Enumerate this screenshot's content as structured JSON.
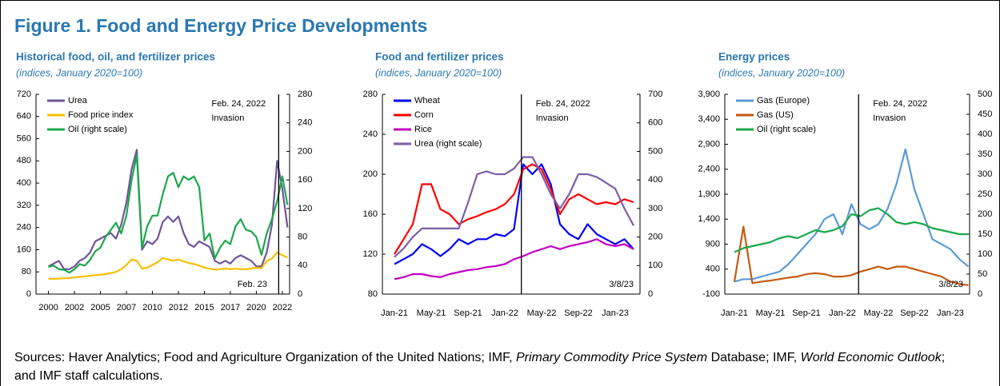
{
  "title": "Figure 1. Food and Energy Price Developments",
  "sources": [
    "Sources: Haver Analytics; Food and Agriculture Organization of the United Nations; IMF, ",
    "Primary Commodity Price System",
    " Database; IMF, ",
    "World Economic Outlook",
    "; and IMF staff calculations."
  ],
  "chart_data": [
    {
      "type": "line",
      "title": "Historical food, oil, and fertilizer prices",
      "subtitle": "(indices, January 2020=100)",
      "x": [
        2000,
        2000.5,
        2001,
        2001.5,
        2002,
        2002.5,
        2003,
        2003.5,
        2004,
        2004.5,
        2005,
        2005.5,
        2006,
        2006.5,
        2007,
        2007.5,
        2008,
        2008.5,
        2009,
        2009.5,
        2010,
        2010.5,
        2011,
        2011.5,
        2012,
        2012.5,
        2013,
        2013.5,
        2014,
        2014.5,
        2015,
        2015.5,
        2016,
        2016.5,
        2017,
        2017.5,
        2018,
        2018.5,
        2019,
        2019.5,
        2020,
        2020.5,
        2021,
        2021.5,
        2022,
        2022.5,
        2023
      ],
      "xlim": [
        1998.8,
        2023.2
      ],
      "xticks": [
        2000,
        {
          "value": 2002.5,
          "label": "2002"
        },
        2005,
        {
          "value": 2007.5,
          "label": "2007"
        },
        2010,
        {
          "value": 2012.5,
          "label": "2012"
        },
        2015,
        {
          "value": 2017.5,
          "label": "2017"
        },
        2020,
        {
          "value": 2022.5,
          "label": "2022"
        }
      ],
      "ylim": [
        0,
        720
      ],
      "yticks": [
        0,
        80,
        160,
        240,
        320,
        400,
        480,
        560,
        640,
        720
      ],
      "y2lim": [
        0,
        280
      ],
      "y2ticks": [
        0,
        40,
        80,
        120,
        160,
        200,
        240,
        280
      ],
      "grid": false,
      "legend": "upper left",
      "series": [
        {
          "name": "Urea",
          "color": "#6f5499",
          "values": [
            100,
            110,
            120,
            90,
            90,
            100,
            120,
            130,
            150,
            190,
            200,
            210,
            220,
            200,
            250,
            330,
            450,
            520,
            160,
            190,
            180,
            200,
            260,
            280,
            260,
            280,
            220,
            180,
            170,
            190,
            180,
            170,
            120,
            110,
            120,
            110,
            130,
            140,
            130,
            120,
            100,
            100,
            150,
            250,
            480,
            380,
            240
          ]
        },
        {
          "name": "Food price index",
          "color": "#f5c000",
          "values": [
            55,
            55,
            56,
            57,
            58,
            60,
            62,
            64,
            66,
            68,
            70,
            72,
            76,
            80,
            90,
            105,
            125,
            120,
            92,
            95,
            105,
            115,
            130,
            125,
            120,
            125,
            118,
            112,
            108,
            103,
            95,
            92,
            88,
            90,
            92,
            90,
            92,
            90,
            90,
            92,
            95,
            93,
            120,
            128,
            150,
            140,
            132
          ]
        },
        {
          "name": "Oil (right scale)",
          "color": "#1aa84a",
          "axis": "y2",
          "values": [
            38,
            40,
            35,
            34,
            30,
            35,
            42,
            40,
            48,
            60,
            65,
            80,
            90,
            100,
            85,
            110,
            160,
            195,
            65,
            95,
            110,
            110,
            140,
            165,
            170,
            150,
            165,
            160,
            165,
            150,
            75,
            85,
            50,
            65,
            75,
            70,
            95,
            105,
            90,
            88,
            80,
            55,
            85,
            105,
            130,
            165,
            125
          ]
        }
      ],
      "event": {
        "x": 2022.15,
        "labels": [
          "Feb. 24, 2022",
          "Invasion"
        ]
      },
      "note": "Feb. 23"
    },
    {
      "type": "line",
      "title": "Food and fertilizer prices",
      "subtitle": "(indices, January 2020=100)",
      "categories": [
        "Jan-21",
        null,
        null,
        null,
        "May-21",
        null,
        null,
        null,
        "Sep-21",
        null,
        null,
        null,
        "Jan-22",
        null,
        null,
        null,
        "May-22",
        null,
        null,
        null,
        "Sep-22",
        null,
        null,
        null,
        "Jan-23",
        null,
        null
      ],
      "ylim": [
        80,
        280
      ],
      "yticks": [
        80,
        120,
        160,
        200,
        240,
        280
      ],
      "y2lim": [
        0,
        700
      ],
      "y2ticks": [
        0,
        100,
        200,
        300,
        400,
        500,
        600,
        700
      ],
      "grid": false,
      "legend": "upper left",
      "series": [
        {
          "name": "Wheat",
          "color": "#0000ff",
          "values": [
            110,
            115,
            120,
            130,
            125,
            118,
            125,
            135,
            130,
            135,
            135,
            140,
            138,
            145,
            210,
            200,
            210,
            190,
            150,
            140,
            135,
            150,
            140,
            135,
            130,
            135,
            125
          ]
        },
        {
          "name": "Corn",
          "color": "#ff0000",
          "values": [
            120,
            135,
            150,
            190,
            190,
            165,
            160,
            150,
            155,
            158,
            162,
            165,
            170,
            180,
            205,
            210,
            205,
            185,
            160,
            175,
            180,
            175,
            170,
            172,
            170,
            175,
            172
          ]
        },
        {
          "name": "Rice",
          "color": "#c000c0",
          "values": [
            95,
            97,
            100,
            100,
            98,
            97,
            100,
            102,
            104,
            105,
            107,
            108,
            110,
            115,
            118,
            122,
            125,
            128,
            125,
            128,
            130,
            132,
            135,
            130,
            128,
            130,
            125
          ]
        },
        {
          "name": "Urea (right scale)",
          "color": "#7b5ea7",
          "axis": "y2",
          "values": [
            130,
            160,
            200,
            230,
            230,
            230,
            230,
            230,
            320,
            420,
            430,
            420,
            420,
            440,
            480,
            480,
            420,
            350,
            300,
            350,
            420,
            420,
            410,
            390,
            370,
            300,
            240
          ]
        }
      ],
      "event": {
        "x": 13.8,
        "labels": [
          "Feb. 24, 2022",
          "Invasion"
        ]
      },
      "note": "3/8/23"
    },
    {
      "type": "line",
      "title": "Energy prices",
      "subtitle": "(indices, January 2020=100)",
      "categories": [
        "Jan-21",
        null,
        null,
        null,
        "May-21",
        null,
        null,
        null,
        "Sep-21",
        null,
        null,
        null,
        "Jan-22",
        null,
        null,
        null,
        "May-22",
        null,
        null,
        null,
        "Sep-22",
        null,
        null,
        null,
        "Jan-23",
        null,
        null
      ],
      "ylim": [
        -100,
        3900
      ],
      "yticks": [
        -100,
        400,
        900,
        {
          "value": 1400,
          "label": "1,400"
        },
        {
          "value": 1900,
          "label": "1,900"
        },
        {
          "value": 2400,
          "label": "2,400"
        },
        {
          "value": 2900,
          "label": "2,900"
        },
        {
          "value": 3400,
          "label": "3,400"
        },
        {
          "value": 3900,
          "label": "3,900"
        }
      ],
      "y2lim": [
        0,
        500
      ],
      "y2ticks": [
        0,
        50,
        100,
        150,
        200,
        250,
        300,
        350,
        400,
        450,
        500
      ],
      "grid": false,
      "legend": "upper left",
      "series": [
        {
          "name": "Gas (Europe)",
          "color": "#5b9bd5",
          "values": [
            150,
            200,
            200,
            250,
            300,
            350,
            500,
            700,
            900,
            1100,
            1400,
            1500,
            1100,
            1700,
            1300,
            1200,
            1300,
            1600,
            2100,
            2800,
            2000,
            1500,
            1000,
            900,
            800,
            600,
            450
          ]
        },
        {
          "name": "Gas (US)",
          "color": "#c55a11",
          "values": [
            150,
            1250,
            120,
            150,
            170,
            200,
            230,
            250,
            300,
            320,
            300,
            250,
            250,
            280,
            350,
            400,
            450,
            400,
            450,
            450,
            400,
            350,
            300,
            250,
            150,
            100,
            80
          ]
        },
        {
          "name": "Oil (right scale)",
          "color": "#1aa84a",
          "axis": "y2",
          "values": [
            105,
            115,
            120,
            125,
            130,
            140,
            145,
            140,
            150,
            160,
            155,
            160,
            170,
            200,
            195,
            210,
            215,
            200,
            180,
            175,
            180,
            175,
            165,
            160,
            155,
            150,
            150
          ]
        }
      ],
      "event": {
        "x": 13.8,
        "labels": [
          "Feb. 24, 2022",
          "Invasion"
        ]
      },
      "note": "3/8/23"
    }
  ]
}
